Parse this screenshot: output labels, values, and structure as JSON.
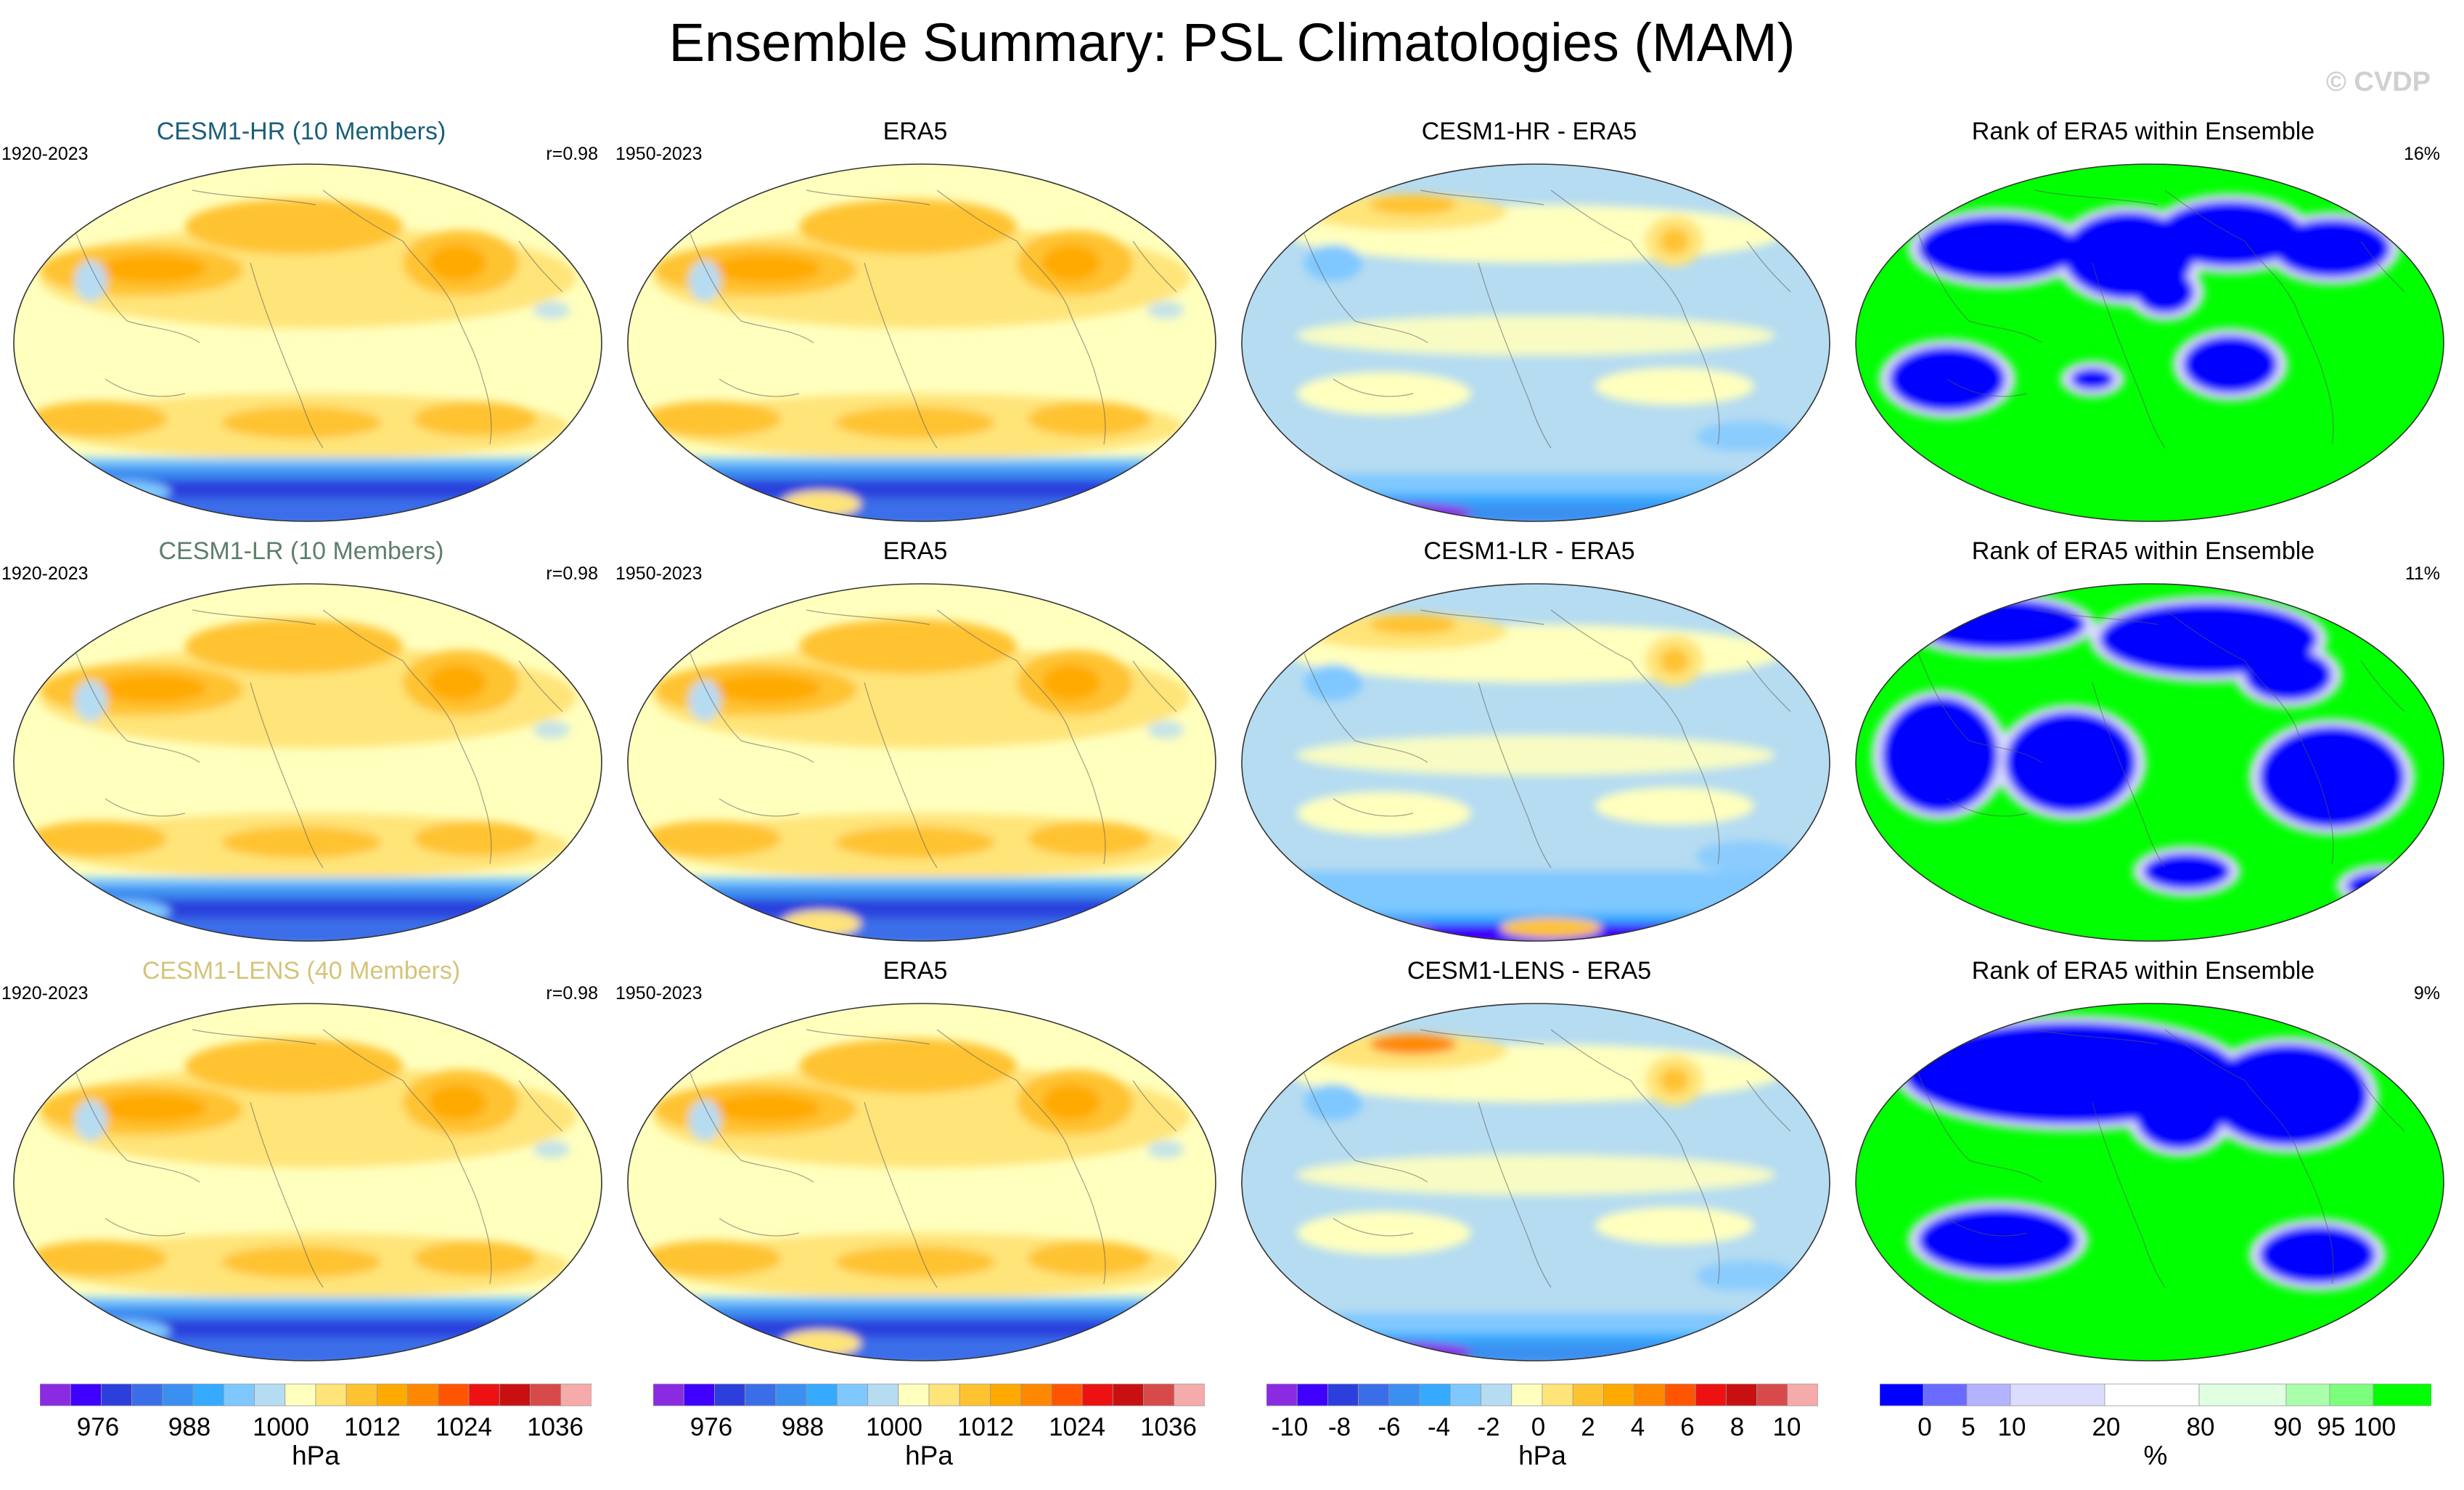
{
  "title": "Ensemble Summary: PSL Climatologies (MAM)",
  "copyright": "© CVDP",
  "colors": {
    "psl_scale": [
      "#8a2be2",
      "#3f00ff",
      "#2c3fdd",
      "#3a6ee8",
      "#3b8ff0",
      "#35aaff",
      "#7fc8ff",
      "#b6dcf2",
      "#ffffbe",
      "#ffe479",
      "#ffc331",
      "#ffaa00",
      "#ff8800",
      "#ff5500",
      "#ee1111",
      "#c81010",
      "#d84a4a",
      "#f6abab"
    ],
    "rank_scale": [
      "#0000ff",
      "#6b6bff",
      "#b3b3ff",
      "#dcdcff",
      "#ffffff",
      "#e1ffe1",
      "#aaffaa",
      "#7cff7c",
      "#00ff00"
    ]
  },
  "rows": [
    {
      "model": {
        "title": "CESM1-HR (10 Members)",
        "title_color": "#1a5f7a",
        "years": "1920-2023",
        "stat": "r=0.98"
      },
      "obs": {
        "title": "ERA5",
        "years": "1950-2023"
      },
      "diff": {
        "title": "CESM1-HR - ERA5"
      },
      "rank": {
        "title": "Rank of ERA5 within Ensemble",
        "stat": "16%"
      }
    },
    {
      "model": {
        "title": "CESM1-LR (10 Members)",
        "title_color": "#5e7f6b",
        "years": "1920-2023",
        "stat": "r=0.98"
      },
      "obs": {
        "title": "ERA5",
        "years": "1950-2023"
      },
      "diff": {
        "title": "CESM1-LR - ERA5"
      },
      "rank": {
        "title": "Rank of ERA5 within Ensemble",
        "stat": "11%"
      }
    },
    {
      "model": {
        "title": "CESM1-LENS (40 Members)",
        "title_color": "#d4c47a",
        "years": "1920-2023",
        "stat": "r=0.98"
      },
      "obs": {
        "title": "ERA5",
        "years": "1950-2023"
      },
      "diff": {
        "title": "CESM1-LENS - ERA5"
      },
      "rank": {
        "title": "Rank of ERA5 within Ensemble",
        "stat": "9%"
      }
    }
  ],
  "colorbars": [
    {
      "unit": "hPa",
      "labels": [
        "976",
        "988",
        "1000",
        "1012",
        "1024",
        "1036"
      ]
    },
    {
      "unit": "hPa",
      "labels": [
        "976",
        "988",
        "1000",
        "1012",
        "1024",
        "1036"
      ]
    },
    {
      "unit": "hPa",
      "labels": [
        "-10",
        "-8",
        "-6",
        "-4",
        "-2",
        "0",
        "2",
        "4",
        "6",
        "8",
        "10"
      ]
    },
    {
      "unit": "%",
      "labels": [
        "0",
        "5",
        "10",
        "20",
        "80",
        "90",
        "95",
        "100"
      ]
    }
  ]
}
